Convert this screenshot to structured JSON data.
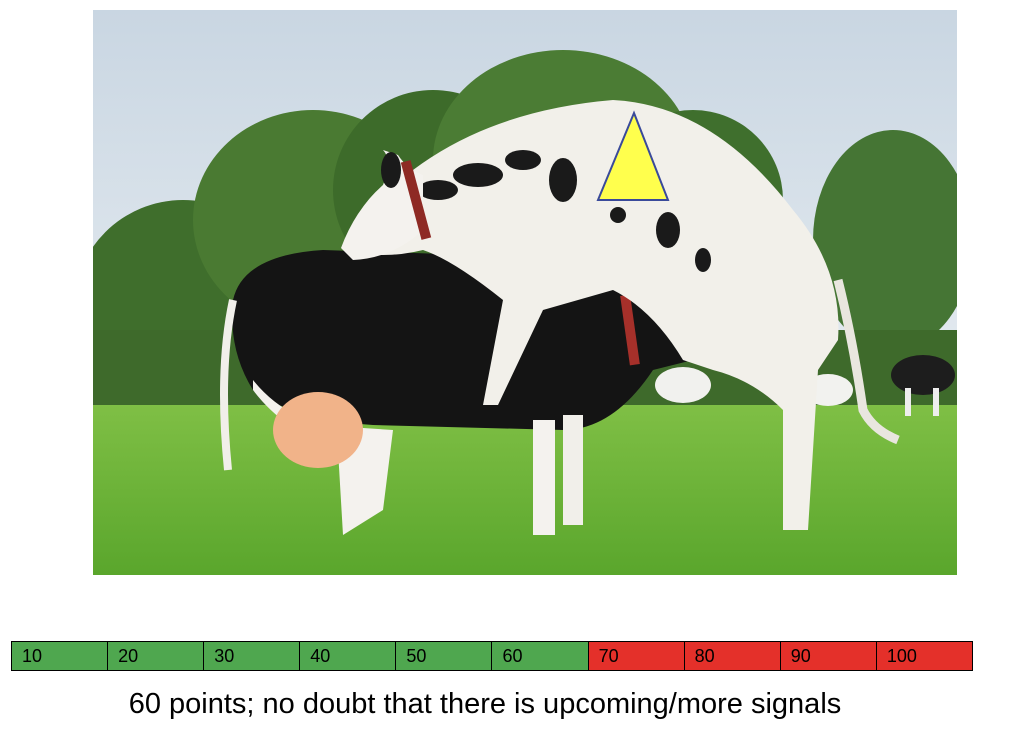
{
  "photo": {
    "subject": "two Holstein cows in a pasture, one mounting the other",
    "marker_icon": "yellow-triangle-icon",
    "marker_color": "#ffff4d"
  },
  "scale": {
    "cells": [
      {
        "label": "10",
        "color": "#4fa74f"
      },
      {
        "label": "20",
        "color": "#4fa74f"
      },
      {
        "label": "30",
        "color": "#4fa74f"
      },
      {
        "label": "40",
        "color": "#4fa74f"
      },
      {
        "label": "50",
        "color": "#4fa74f"
      },
      {
        "label": "60",
        "color": "#4fa74f"
      },
      {
        "label": "70",
        "color": "#e4302a"
      },
      {
        "label": "80",
        "color": "#e4302a"
      },
      {
        "label": "90",
        "color": "#e4302a"
      },
      {
        "label": "100",
        "color": "#e4302a"
      }
    ]
  },
  "caption": "60 points; no doubt that there is upcoming/more signals"
}
